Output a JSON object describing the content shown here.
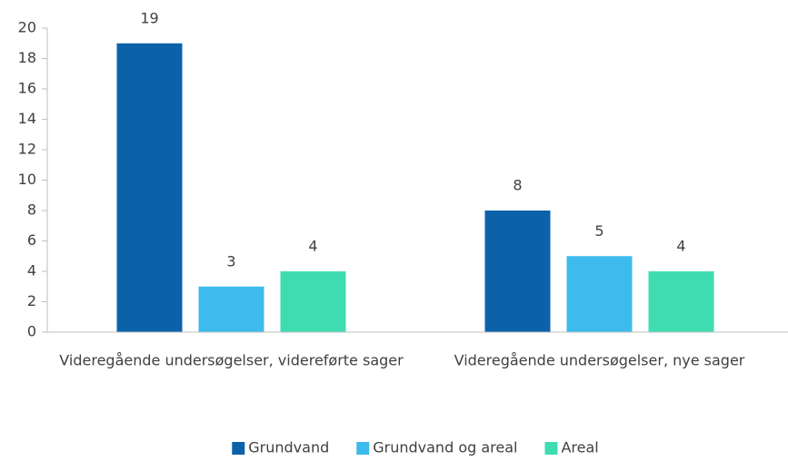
{
  "chart_data": {
    "type": "bar",
    "categories": [
      "Videregående undersøgelser, videreførte sager",
      "Videregående undersøgelser, nye sager"
    ],
    "series": [
      {
        "name": "Grundvand",
        "color": "#0b62a9",
        "values": [
          19,
          8
        ]
      },
      {
        "name": "Grundvand og areal",
        "color": "#3dbbec",
        "values": [
          3,
          5
        ]
      },
      {
        "name": "Areal",
        "color": "#3fdcb1",
        "values": [
          4,
          4
        ]
      }
    ],
    "ylim": [
      0,
      20
    ],
    "yticks": [
      0,
      2,
      4,
      6,
      8,
      10,
      12,
      14,
      16,
      18,
      20
    ],
    "legend": "bottom"
  }
}
